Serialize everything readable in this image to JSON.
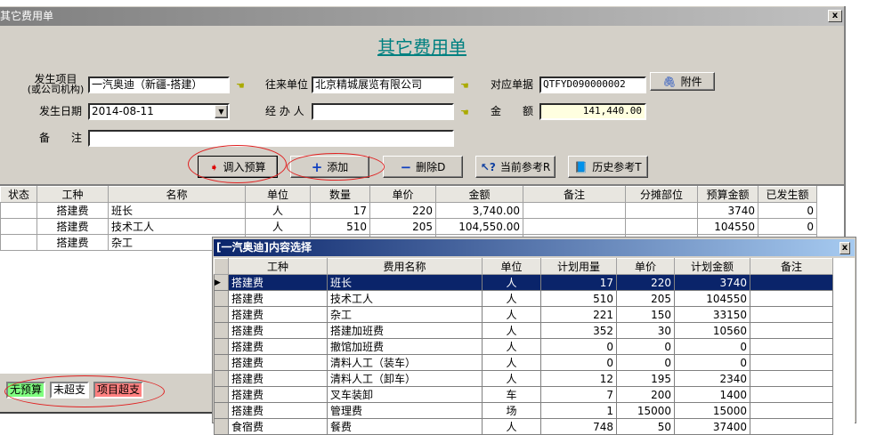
{
  "window": {
    "title": "其它费用单",
    "heading": "其它费用单",
    "close": "x"
  },
  "form": {
    "project_label": "发生项目",
    "project_sublabel": "(或公司机构)",
    "project_value": "一汽奥迪（新疆-搭建）",
    "partner_label": "往来单位",
    "partner_value": "北京精城展览有限公司",
    "doc_label": "对应单据",
    "doc_value": "QTFYD090000002",
    "attach_label": "附件",
    "date_label": "发生日期",
    "date_value": "2014-08-11",
    "handler_label": "经 办 人",
    "handler_value": "",
    "amount_label": "金　　额",
    "amount_value": "141,440.00",
    "remark_label": "备　　注",
    "remark_value": ""
  },
  "toolbar": {
    "import_budget": "调入预算",
    "add": "添加",
    "delete": "删除D",
    "current_ref": "当前参考R",
    "history_ref": "历史参考T"
  },
  "grid": {
    "columns": [
      "状态",
      "工种",
      "名称",
      "单位",
      "数量",
      "单价",
      "金额",
      "备注",
      "分摊部位",
      "预算金额",
      "已发生额"
    ],
    "rows": [
      [
        "",
        "搭建费",
        "班长",
        "人",
        "17",
        "220",
        "3,740.00",
        "",
        "",
        "3740",
        "0"
      ],
      [
        "",
        "搭建费",
        "技术工人",
        "人",
        "510",
        "205",
        "104,550.00",
        "",
        "",
        "104550",
        "0"
      ],
      [
        "",
        "搭建费",
        "杂工",
        "",
        "",
        "",
        "",
        "",
        "",
        "",
        ""
      ]
    ]
  },
  "legend": [
    {
      "label": "无预算",
      "color": "#80ff80"
    },
    {
      "label": "未超支",
      "color": "#ffffff"
    },
    {
      "label": "项目超支",
      "color": "#ff8080"
    }
  ],
  "popup": {
    "title": "[一汽奥迪]内容选择",
    "close": "x",
    "columns": [
      "工种",
      "费用名称",
      "单位",
      "计划用量",
      "单价",
      "计划金额",
      "备注"
    ],
    "selected_index": 0,
    "rows": [
      [
        "搭建费",
        "班长",
        "人",
        "17",
        "220",
        "3740",
        ""
      ],
      [
        "搭建费",
        "技术工人",
        "人",
        "510",
        "205",
        "104550",
        ""
      ],
      [
        "搭建费",
        "杂工",
        "人",
        "221",
        "150",
        "33150",
        ""
      ],
      [
        "搭建费",
        "搭建加班费",
        "人",
        "352",
        "30",
        "10560",
        ""
      ],
      [
        "搭建费",
        "撤馆加班费",
        "人",
        "0",
        "0",
        "0",
        ""
      ],
      [
        "搭建费",
        "清料人工（装车）",
        "人",
        "0",
        "0",
        "0",
        ""
      ],
      [
        "搭建费",
        "清料人工（卸车）",
        "人",
        "12",
        "195",
        "2340",
        ""
      ],
      [
        "搭建费",
        "叉车装卸",
        "车",
        "7",
        "200",
        "1400",
        ""
      ],
      [
        "搭建费",
        "管理费",
        "场",
        "1",
        "15000",
        "15000",
        ""
      ],
      [
        "食宿费",
        "餐费",
        "人",
        "748",
        "50",
        "37400",
        ""
      ]
    ]
  }
}
